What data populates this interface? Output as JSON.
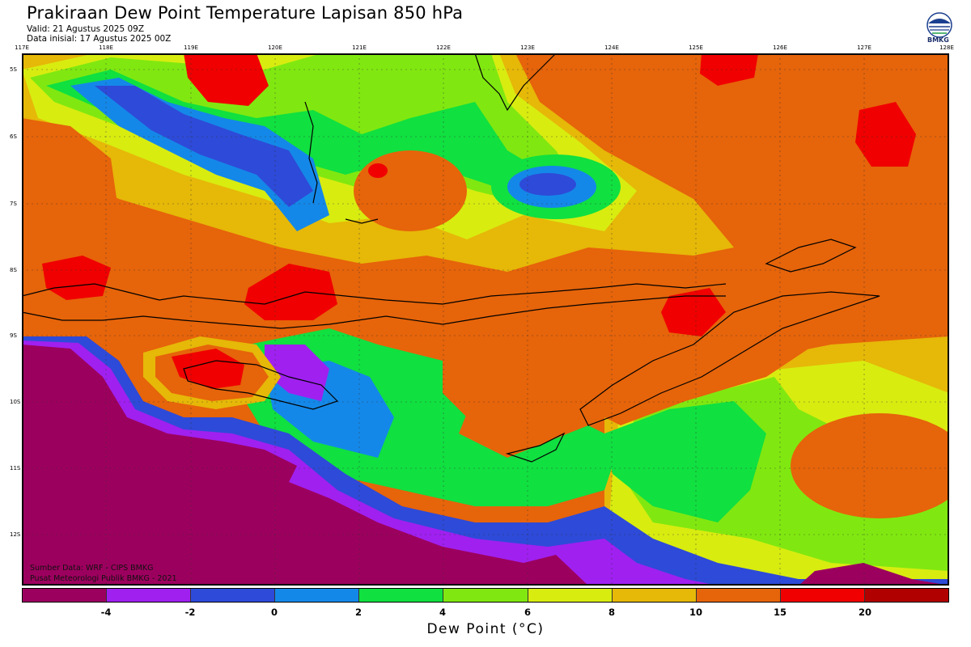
{
  "header": {
    "title": "Prakiraan Dew Point Temperature Lapisan 850 hPa",
    "valid": "Valid: 21 Agustus 2025 09Z",
    "initial": "Data inisial: 17 Agustus 2025 00Z"
  },
  "logo": {
    "text": "BMKG",
    "icon": "bmkg-logo"
  },
  "map": {
    "lon_labels": [
      "117E",
      "118E",
      "119E",
      "120E",
      "121E",
      "122E",
      "123E",
      "124E",
      "125E",
      "126E",
      "127E",
      "128E"
    ],
    "lat_labels": [
      "5S",
      "6S",
      "7S",
      "8S",
      "9S",
      "10S",
      "11S",
      "12S"
    ],
    "lon_range": [
      117,
      128
    ],
    "lat_range": [
      -4.8,
      -12.7
    ],
    "grid": true
  },
  "credits": {
    "source": "Sumber Data: WRF - CIPS BMKG",
    "center": "Pusat Meteorologi Publik BMKG - 2021"
  },
  "colorbar": {
    "colors": [
      "#9c005e",
      "#a020f0",
      "#2e4ad8",
      "#1488e8",
      "#10e040",
      "#80e810",
      "#d8ec10",
      "#e6b808",
      "#e6640a",
      "#f00000",
      "#b00000"
    ],
    "ticks": [
      "-4",
      "-2",
      "0",
      "2",
      "4",
      "6",
      "8",
      "10",
      "15",
      "20"
    ],
    "title": "Dew Point (°C)"
  },
  "colors": {
    "dry": "#9c005e",
    "purple": "#a020f0",
    "blue": "#2e4ad8",
    "lightblue": "#1488e8",
    "green": "#10e040",
    "lime": "#80e810",
    "yellow": "#d8ec10",
    "gold": "#e6b808",
    "orange": "#e6640a",
    "red": "#f00000"
  }
}
